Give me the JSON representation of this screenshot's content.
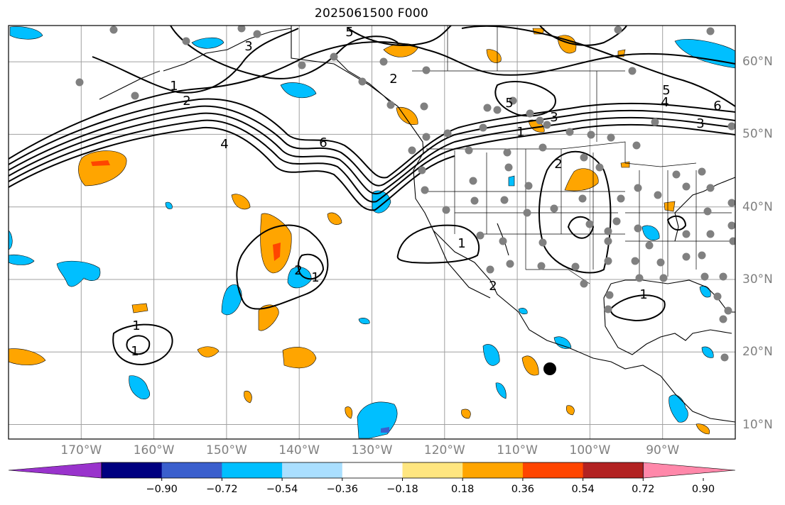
{
  "title": "2025061500 F000",
  "axes": {
    "lon_labels": [
      "170°W",
      "160°W",
      "150°W",
      "140°W",
      "130°W",
      "120°W",
      "110°W",
      "100°W",
      "90°W"
    ],
    "lat_labels": [
      "60°N",
      "50°N",
      "40°N",
      "30°N",
      "20°N",
      "10°N"
    ],
    "lon_values": [
      -170,
      -160,
      -150,
      -140,
      -130,
      -120,
      -110,
      -100,
      -90
    ],
    "lat_values": [
      60,
      50,
      40,
      30,
      20,
      10
    ],
    "lon_range": [
      -180,
      -80
    ],
    "lat_range": [
      8,
      65
    ],
    "grid": true
  },
  "colorbar": {
    "ticks": [
      "−0.90",
      "−0.72",
      "−0.54",
      "−0.36",
      "−0.18",
      "0.18",
      "0.36",
      "0.54",
      "0.72",
      "0.90"
    ],
    "colors": [
      "#9933cc",
      "#000080",
      "#3a5fcd",
      "#00bfff",
      "#aadfff",
      "#ffffff",
      "#ffe680",
      "#ffa500",
      "#ff4500",
      "#b22222",
      "#ff88aa"
    ],
    "extend": "both"
  },
  "contour_labels": [
    "5",
    "3",
    "2",
    "1",
    "5",
    "6",
    "4",
    "3",
    "5",
    "2",
    "1",
    "4",
    "6",
    "3",
    "2",
    "1",
    "1",
    "1",
    "1",
    "2",
    "1",
    "2"
  ]
}
